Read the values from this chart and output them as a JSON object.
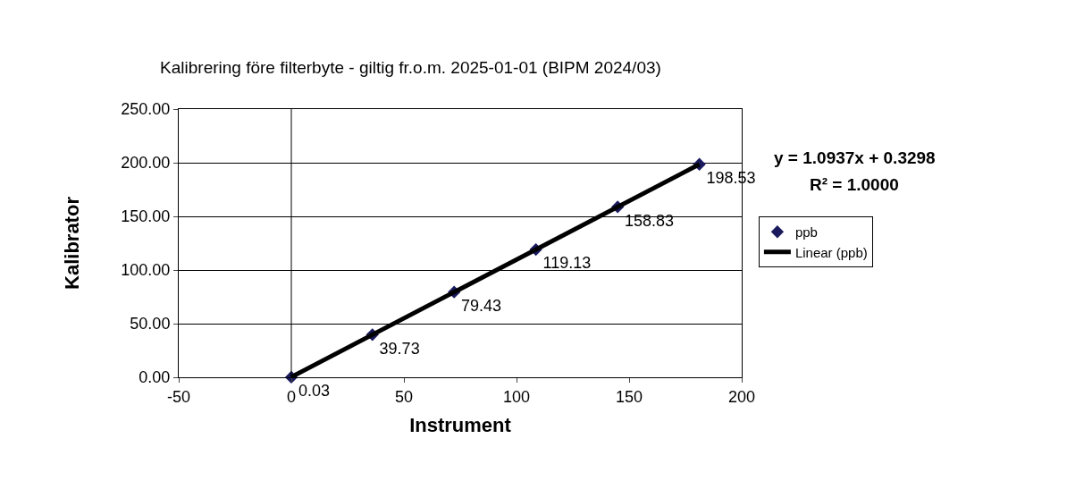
{
  "chart_data": {
    "type": "scatter",
    "title": "Kalibrering före filterbyte - giltig fr.o.m. 2025-01-01 (BIPM 2024/03)",
    "xlabel": "Instrument",
    "ylabel": "Kalibrator",
    "annotations": [
      "y = 1.0937x + 0.3298",
      "R² = 1.0000"
    ],
    "series": [
      {
        "name": "ppb",
        "color": "#1a1a5e",
        "marker": "diamond",
        "x": [
          0,
          36,
          72.3,
          108.6,
          144.9,
          181.2
        ],
        "values": [
          0.03,
          39.73,
          79.43,
          119.13,
          158.83,
          198.53
        ],
        "value_labels": [
          "0.03",
          "39.73",
          "79.43",
          "119.13",
          "158.83",
          "198.53"
        ]
      },
      {
        "name": "Linear (ppb)",
        "type": "line",
        "color": "#000000",
        "marker": "none",
        "line_style": "solid",
        "x": [
          0,
          181.2
        ],
        "values": [
          0.3,
          198.5
        ]
      }
    ],
    "xlim": [
      -50,
      200
    ],
    "xticks": [
      -50,
      0,
      50,
      100,
      150,
      200
    ],
    "ylim": [
      0,
      250
    ],
    "yticks": [
      {
        "value": 0,
        "label": "0.00"
      },
      {
        "value": 50,
        "label": "50.00"
      },
      {
        "value": 100,
        "label": "100.00"
      },
      {
        "value": 150,
        "label": "150.00"
      },
      {
        "value": 200,
        "label": "200.00"
      },
      {
        "value": 250,
        "label": "250.00"
      }
    ],
    "grid": "y",
    "ref_lines": [
      {
        "axis": "x",
        "value": 0,
        "color": "#000000"
      }
    ],
    "legend": "right"
  }
}
